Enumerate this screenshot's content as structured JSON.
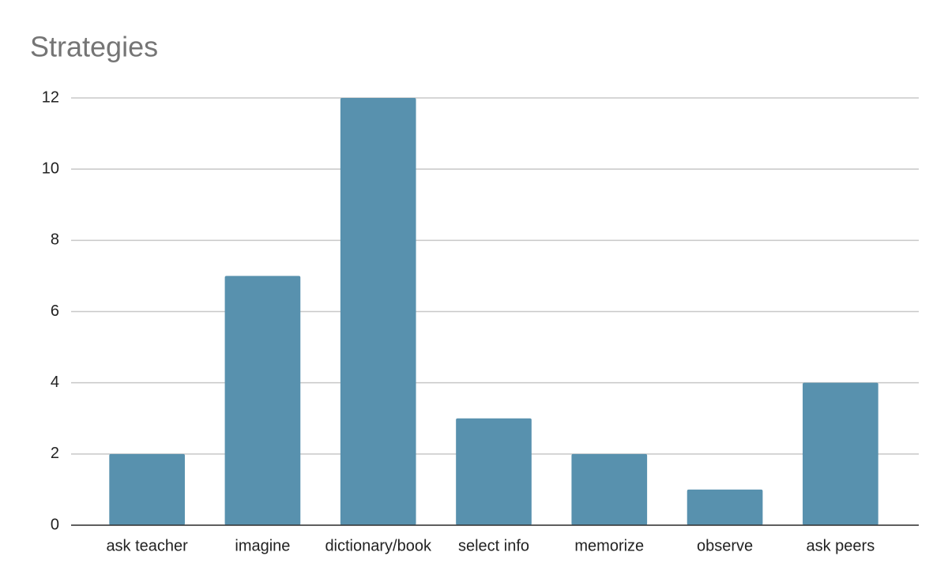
{
  "chart_data": {
    "type": "bar",
    "title": "Strategies",
    "categories": [
      "ask teacher",
      "imagine",
      "dictionary/book",
      "select info",
      "memorize",
      "observe",
      "ask peers"
    ],
    "values": [
      2,
      7,
      12,
      3,
      2,
      1,
      4
    ],
    "color": "#5891ae",
    "ylim": [
      0,
      12
    ],
    "yticks": [
      0,
      2,
      4,
      6,
      8,
      10,
      12
    ],
    "grid": true
  }
}
